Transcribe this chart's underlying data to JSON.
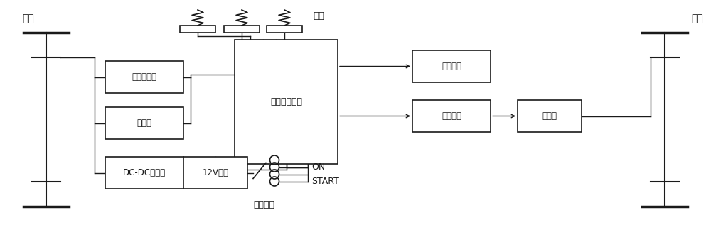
{
  "bg_color": "#ffffff",
  "line_color": "#1a1a1a",
  "figsize": [
    10.0,
    3.41
  ],
  "dpi": 100,
  "labels": {
    "front_wheel": "前轮",
    "rear_wheel": "后轮",
    "pedal": "踏板",
    "motor_ctrl": "电机控制器",
    "battery": "电池组",
    "dcdc": "DC-DC转换器",
    "main_ctrl": "整车控制装置",
    "battery12v": "12V电瓶",
    "car_elec": "车载电器",
    "drive_motor": "驱动电机",
    "gearbox": "变速箱",
    "ignition": "打火机构",
    "on": "ON",
    "start": "START"
  }
}
